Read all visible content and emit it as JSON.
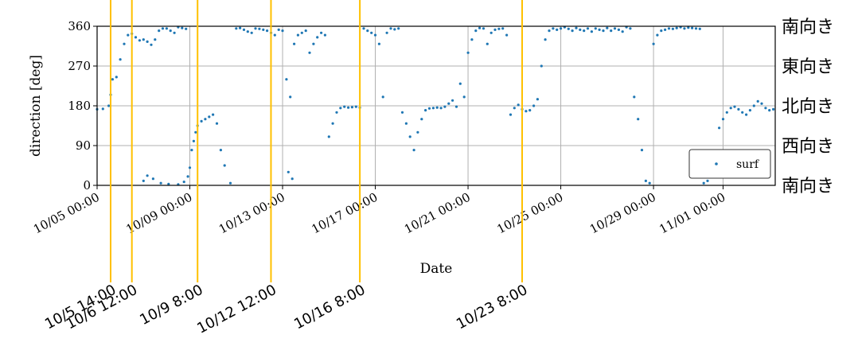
{
  "chart_data": {
    "type": "scatter",
    "xlabel": "Date",
    "ylabel": "direction [deg]",
    "ylim": [
      0,
      360
    ],
    "xlim": [
      "2023-10-05 00:00",
      "2023-11-03 06:00"
    ],
    "yticks": [
      0,
      90,
      180,
      270,
      360
    ],
    "xticks": [
      {
        "t": "2023-10-05 00:00",
        "label": "10/05 00:00"
      },
      {
        "t": "2023-10-09 00:00",
        "label": "10/09 00:00"
      },
      {
        "t": "2023-10-13 00:00",
        "label": "10/13 00:00"
      },
      {
        "t": "2023-10-17 00:00",
        "label": "10/17 00:00"
      },
      {
        "t": "2023-10-21 00:00",
        "label": "10/21 00:00"
      },
      {
        "t": "2023-10-25 00:00",
        "label": "10/25 00:00"
      },
      {
        "t": "2023-10-29 00:00",
        "label": "10/29 00:00"
      },
      {
        "t": "2023-11-01 00:00",
        "label": "11/01 00:00"
      }
    ],
    "grid": true,
    "legend": {
      "position": "lower-right",
      "entries": [
        "surf"
      ]
    },
    "series": [
      {
        "name": "surf",
        "color": "#1f77b4",
        "points": [
          [
            "2023-10-05 00:00",
            172
          ],
          [
            "2023-10-05 06:00",
            173
          ],
          [
            "2023-10-05 12:00",
            180
          ],
          [
            "2023-10-05 14:00",
            205
          ],
          [
            "2023-10-05 16:00",
            240
          ],
          [
            "2023-10-05 20:00",
            245
          ],
          [
            "2023-10-06 00:00",
            285
          ],
          [
            "2023-10-06 04:00",
            320
          ],
          [
            "2023-10-06 08:00",
            340
          ],
          [
            "2023-10-06 12:00",
            343
          ],
          [
            "2023-10-06 16:00",
            335
          ],
          [
            "2023-10-06 20:00",
            328
          ],
          [
            "2023-10-07 00:00",
            330
          ],
          [
            "2023-10-07 04:00",
            325
          ],
          [
            "2023-10-07 08:00",
            318
          ],
          [
            "2023-10-07 12:00",
            330
          ],
          [
            "2023-10-07 16:00",
            350
          ],
          [
            "2023-10-07 20:00",
            355
          ],
          [
            "2023-10-08 00:00",
            355
          ],
          [
            "2023-10-08 04:00",
            350
          ],
          [
            "2023-10-08 08:00",
            345
          ],
          [
            "2023-10-08 12:00",
            358
          ],
          [
            "2023-10-08 16:00",
            356
          ],
          [
            "2023-10-08 20:00",
            354
          ],
          [
            "2023-10-07 00:00",
            10
          ],
          [
            "2023-10-07 04:00",
            22
          ],
          [
            "2023-10-07 10:00",
            15
          ],
          [
            "2023-10-07 18:00",
            5
          ],
          [
            "2023-10-08 02:00",
            3
          ],
          [
            "2023-10-08 12:00",
            2
          ],
          [
            "2023-10-08 18:00",
            8
          ],
          [
            "2023-10-08 22:00",
            20
          ],
          [
            "2023-10-09 00:00",
            40
          ],
          [
            "2023-10-09 02:00",
            80
          ],
          [
            "2023-10-09 04:00",
            100
          ],
          [
            "2023-10-09 06:00",
            120
          ],
          [
            "2023-10-09 08:00",
            135
          ],
          [
            "2023-10-09 12:00",
            145
          ],
          [
            "2023-10-09 16:00",
            150
          ],
          [
            "2023-10-09 20:00",
            155
          ],
          [
            "2023-10-10 00:00",
            160
          ],
          [
            "2023-10-10 04:00",
            140
          ],
          [
            "2023-10-10 08:00",
            80
          ],
          [
            "2023-10-10 12:00",
            45
          ],
          [
            "2023-10-10 18:00",
            5
          ],
          [
            "2023-10-11 00:00",
            355
          ],
          [
            "2023-10-11 04:00",
            356
          ],
          [
            "2023-10-11 08:00",
            352
          ],
          [
            "2023-10-11 12:00",
            348
          ],
          [
            "2023-10-11 16:00",
            345
          ],
          [
            "2023-10-11 20:00",
            355
          ],
          [
            "2023-10-12 00:00",
            354
          ],
          [
            "2023-10-12 04:00",
            352
          ],
          [
            "2023-10-12 08:00",
            350
          ],
          [
            "2023-10-12 12:00",
            345
          ],
          [
            "2023-10-12 16:00",
            340
          ],
          [
            "2023-10-12 20:00",
            352
          ],
          [
            "2023-10-13 00:00",
            350
          ],
          [
            "2023-10-13 04:00",
            240
          ],
          [
            "2023-10-13 08:00",
            200
          ],
          [
            "2023-10-13 12:00",
            320
          ],
          [
            "2023-10-13 16:00",
            340
          ],
          [
            "2023-10-13 20:00",
            345
          ],
          [
            "2023-10-13 06:00",
            30
          ],
          [
            "2023-10-13 10:00",
            15
          ],
          [
            "2023-10-14 00:00",
            350
          ],
          [
            "2023-10-14 04:00",
            300
          ],
          [
            "2023-10-14 08:00",
            320
          ],
          [
            "2023-10-14 12:00",
            335
          ],
          [
            "2023-10-14 16:00",
            345
          ],
          [
            "2023-10-14 20:00",
            340
          ],
          [
            "2023-10-15 00:00",
            110
          ],
          [
            "2023-10-15 04:00",
            140
          ],
          [
            "2023-10-15 08:00",
            165
          ],
          [
            "2023-10-15 12:00",
            175
          ],
          [
            "2023-10-15 16:00",
            178
          ],
          [
            "2023-10-15 20:00",
            176
          ],
          [
            "2023-10-16 00:00",
            177
          ],
          [
            "2023-10-16 04:00",
            178
          ],
          [
            "2023-10-16 08:00",
            176
          ],
          [
            "2023-10-16 12:00",
            355
          ],
          [
            "2023-10-16 16:00",
            350
          ],
          [
            "2023-10-16 20:00",
            345
          ],
          [
            "2023-10-17 00:00",
            340
          ],
          [
            "2023-10-17 04:00",
            320
          ],
          [
            "2023-10-17 08:00",
            200
          ],
          [
            "2023-10-17 12:00",
            345
          ],
          [
            "2023-10-17 16:00",
            355
          ],
          [
            "2023-10-17 20:00",
            353
          ],
          [
            "2023-10-18 00:00",
            355
          ],
          [
            "2023-10-18 04:00",
            165
          ],
          [
            "2023-10-18 08:00",
            140
          ],
          [
            "2023-10-18 12:00",
            110
          ],
          [
            "2023-10-18 16:00",
            80
          ],
          [
            "2023-10-18 20:00",
            120
          ],
          [
            "2023-10-19 00:00",
            150
          ],
          [
            "2023-10-19 04:00",
            170
          ],
          [
            "2023-10-19 08:00",
            174
          ],
          [
            "2023-10-19 12:00",
            175
          ],
          [
            "2023-10-19 16:00",
            176
          ],
          [
            "2023-10-19 20:00",
            175
          ],
          [
            "2023-10-20 00:00",
            178
          ],
          [
            "2023-10-20 04:00",
            185
          ],
          [
            "2023-10-20 08:00",
            192
          ],
          [
            "2023-10-20 12:00",
            178
          ],
          [
            "2023-10-20 16:00",
            230
          ],
          [
            "2023-10-20 20:00",
            200
          ],
          [
            "2023-10-21 00:00",
            300
          ],
          [
            "2023-10-21 04:00",
            330
          ],
          [
            "2023-10-21 08:00",
            350
          ],
          [
            "2023-10-21 12:00",
            356
          ],
          [
            "2023-10-21 16:00",
            355
          ],
          [
            "2023-10-21 20:00",
            320
          ],
          [
            "2023-10-22 00:00",
            345
          ],
          [
            "2023-10-22 04:00",
            352
          ],
          [
            "2023-10-22 08:00",
            354
          ],
          [
            "2023-10-22 12:00",
            355
          ],
          [
            "2023-10-22 16:00",
            340
          ],
          [
            "2023-10-22 20:00",
            160
          ],
          [
            "2023-10-23 00:00",
            175
          ],
          [
            "2023-10-23 04:00",
            182
          ],
          [
            "2023-10-23 08:00",
            172
          ],
          [
            "2023-10-23 12:00",
            168
          ],
          [
            "2023-10-23 16:00",
            170
          ],
          [
            "2023-10-23 20:00",
            180
          ],
          [
            "2023-10-24 00:00",
            195
          ],
          [
            "2023-10-24 04:00",
            270
          ],
          [
            "2023-10-24 08:00",
            330
          ],
          [
            "2023-10-24 12:00",
            350
          ],
          [
            "2023-10-24 16:00",
            355
          ],
          [
            "2023-10-24 20:00",
            352
          ],
          [
            "2023-10-25 00:00",
            355
          ],
          [
            "2023-10-25 04:00",
            358
          ],
          [
            "2023-10-25 08:00",
            354
          ],
          [
            "2023-10-25 12:00",
            350
          ],
          [
            "2023-10-25 16:00",
            356
          ],
          [
            "2023-10-25 20:00",
            352
          ],
          [
            "2023-10-26 00:00",
            350
          ],
          [
            "2023-10-26 04:00",
            355
          ],
          [
            "2023-10-26 08:00",
            348
          ],
          [
            "2023-10-26 12:00",
            355
          ],
          [
            "2023-10-26 16:00",
            352
          ],
          [
            "2023-10-26 20:00",
            350
          ],
          [
            "2023-10-27 00:00",
            356
          ],
          [
            "2023-10-27 04:00",
            350
          ],
          [
            "2023-10-27 08:00",
            355
          ],
          [
            "2023-10-27 12:00",
            352
          ],
          [
            "2023-10-27 16:00",
            348
          ],
          [
            "2023-10-27 20:00",
            358
          ],
          [
            "2023-10-28 00:00",
            355
          ],
          [
            "2023-10-28 04:00",
            200
          ],
          [
            "2023-10-28 08:00",
            150
          ],
          [
            "2023-10-28 12:00",
            80
          ],
          [
            "2023-10-28 16:00",
            10
          ],
          [
            "2023-10-28 20:00",
            5
          ],
          [
            "2023-10-29 00:00",
            320
          ],
          [
            "2023-10-29 04:00",
            340
          ],
          [
            "2023-10-29 08:00",
            350
          ],
          [
            "2023-10-29 12:00",
            352
          ],
          [
            "2023-10-29 16:00",
            355
          ],
          [
            "2023-10-29 20:00",
            354
          ],
          [
            "2023-10-30 00:00",
            356
          ],
          [
            "2023-10-30 04:00",
            358
          ],
          [
            "2023-10-30 08:00",
            355
          ],
          [
            "2023-10-30 12:00",
            357
          ],
          [
            "2023-10-30 16:00",
            356
          ],
          [
            "2023-10-30 20:00",
            355
          ],
          [
            "2023-10-31 00:00",
            354
          ],
          [
            "2023-10-31 04:00",
            5
          ],
          [
            "2023-10-31 08:00",
            10
          ],
          [
            "2023-10-31 12:00",
            20
          ],
          [
            "2023-10-31 16:00",
            60
          ],
          [
            "2023-10-31 20:00",
            130
          ],
          [
            "2023-11-01 00:00",
            150
          ],
          [
            "2023-11-01 04:00",
            165
          ],
          [
            "2023-11-01 08:00",
            175
          ],
          [
            "2023-11-01 12:00",
            178
          ],
          [
            "2023-11-01 16:00",
            172
          ],
          [
            "2023-11-01 20:00",
            165
          ],
          [
            "2023-11-02 00:00",
            160
          ],
          [
            "2023-11-02 04:00",
            170
          ],
          [
            "2023-11-02 08:00",
            180
          ],
          [
            "2023-11-02 12:00",
            190
          ],
          [
            "2023-11-02 16:00",
            185
          ],
          [
            "2023-11-02 20:00",
            175
          ],
          [
            "2023-11-03 00:00",
            170
          ],
          [
            "2023-11-03 04:00",
            172
          ]
        ]
      }
    ],
    "vlines": {
      "color": "#ffc000",
      "items": [
        {
          "t": "2023-10-05 14:00",
          "label": "10/5 14:00"
        },
        {
          "t": "2023-10-06 12:00",
          "label": "10/6 12:00"
        },
        {
          "t": "2023-10-09 08:00",
          "label": "10/9 8:00"
        },
        {
          "t": "2023-10-12 12:00",
          "label": "10/12 12:00"
        },
        {
          "t": "2023-10-16 08:00",
          "label": "10/16 8:00"
        },
        {
          "t": "2023-10-23 08:00",
          "label": "10/23 8:00"
        }
      ]
    },
    "direction_labels": [
      {
        "deg": 360,
        "label": "南向き"
      },
      {
        "deg": 270,
        "label": "東向き"
      },
      {
        "deg": 180,
        "label": "北向き"
      },
      {
        "deg": 90,
        "label": "西向き"
      },
      {
        "deg": 0,
        "label": "南向き"
      }
    ]
  }
}
